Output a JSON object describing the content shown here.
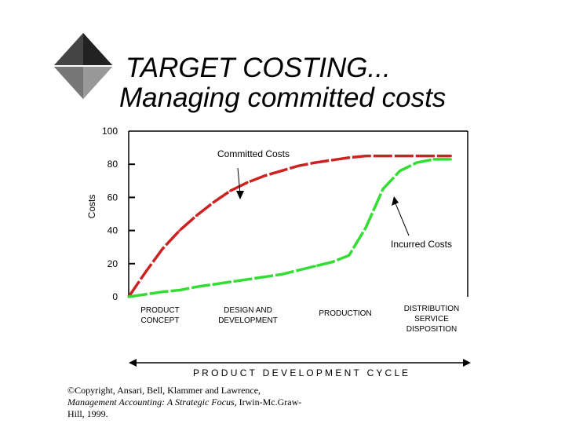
{
  "title_line1": "TARGET COSTING...",
  "title_line2": "Managing committed costs",
  "copyright": {
    "line1": "©Copyright, Ansari, Bell, Klammer and Lawrence,",
    "book": "Management Accounting: A Strategic Focus",
    "line2_rest": ", Irwin-Mc.Graw-",
    "line3": "Hill, 1999."
  },
  "colors": {
    "committed": "#cc2222",
    "incurred": "#33dd33",
    "axis": "#000000"
  },
  "chart_data": {
    "type": "line",
    "ylabel": "Costs",
    "xlabel": "P R O D U C T   D E V E L O P M E N T   C Y C L E",
    "ylim": [
      0,
      100
    ],
    "yticks": [
      "100",
      "80",
      "60",
      "40",
      "20",
      "0"
    ],
    "stages": [
      "PRODUCT\nCONCEPT",
      "DESIGN AND\nDEVELOPMENT",
      "PRODUCTION",
      "DISTRIBUTION\nSERVICE\nDISPOSITION"
    ],
    "annotations": [
      "Committed  Costs",
      "Incurred Costs"
    ],
    "series": [
      {
        "name": "Committed Costs",
        "x": [
          0,
          5,
          10,
          15,
          20,
          25,
          30,
          35,
          40,
          45,
          50,
          55,
          60,
          65,
          70,
          75,
          80,
          85,
          90,
          95
        ],
        "values": [
          0,
          15,
          29,
          40,
          49,
          57,
          64,
          69,
          73,
          76,
          79,
          81,
          82.5,
          84,
          85,
          85,
          85,
          85,
          85,
          85
        ]
      },
      {
        "name": "Incurred Costs",
        "x": [
          0,
          5,
          10,
          15,
          20,
          25,
          30,
          35,
          40,
          45,
          50,
          55,
          60,
          65,
          70,
          75,
          80,
          85,
          90,
          95
        ],
        "values": [
          0,
          1.5,
          3,
          4,
          6,
          7.5,
          9,
          10.5,
          12,
          13.5,
          16,
          18.5,
          21,
          25,
          42,
          65,
          76,
          81,
          83,
          83
        ]
      }
    ]
  }
}
